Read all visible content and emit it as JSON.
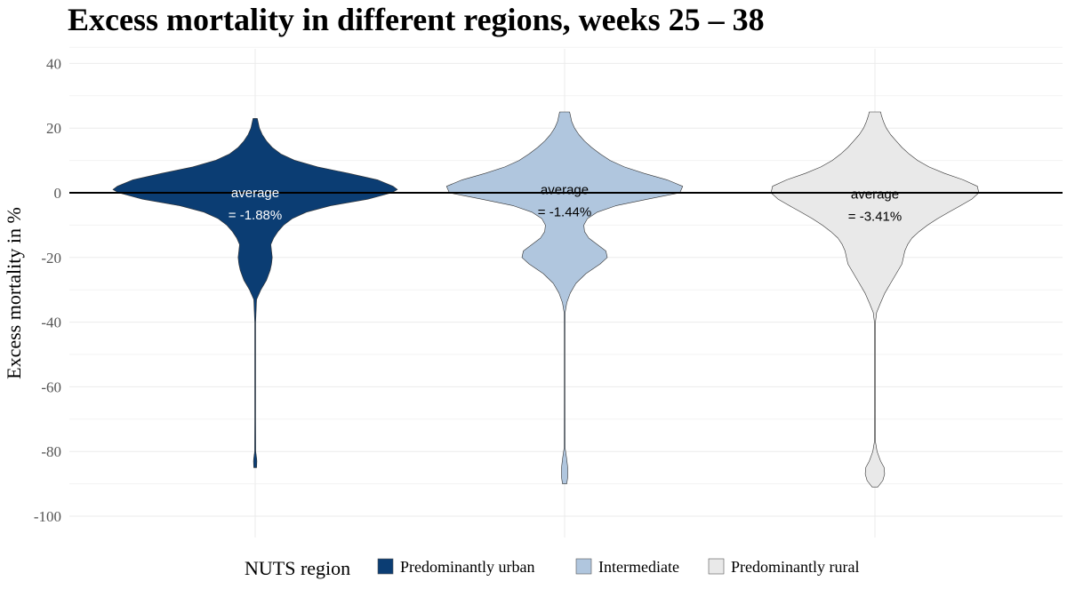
{
  "chart_data": {
    "type": "violin",
    "title": "Excess mortality in different regions, weeks 25 – 38",
    "xlabel": "",
    "ylabel": "Excess mortality in %",
    "ylim": [
      -105,
      43
    ],
    "yticks": [
      40,
      20,
      0,
      -20,
      -40,
      -60,
      -80,
      -100
    ],
    "ytick_labels": [
      "40",
      "20",
      "0",
      "-20",
      "-40",
      "-60",
      "-80",
      "-100"
    ],
    "grid": true,
    "reference_line": 0,
    "legend": {
      "title": "NUTS region",
      "placement": "bottom"
    },
    "series": [
      {
        "name": "Predominantly urban",
        "color": "#0b3d73",
        "text_color": "#ffffff",
        "annotation": [
          "average",
          "= -1.88%"
        ],
        "annotation_y": -3,
        "profile": [
          [
            -85,
            0.01
          ],
          [
            -83,
            0.012
          ],
          [
            -82,
            0.01
          ],
          [
            -80,
            0.004
          ],
          [
            -70,
            0.003
          ],
          [
            -50,
            0.003
          ],
          [
            -40,
            0.003
          ],
          [
            -33,
            0.01
          ],
          [
            -30,
            0.04
          ],
          [
            -27,
            0.08
          ],
          [
            -24,
            0.105
          ],
          [
            -22,
            0.115
          ],
          [
            -20,
            0.12
          ],
          [
            -18,
            0.115
          ],
          [
            -16,
            0.11
          ],
          [
            -14,
            0.13
          ],
          [
            -12,
            0.16
          ],
          [
            -10,
            0.2
          ],
          [
            -8,
            0.26
          ],
          [
            -6,
            0.36
          ],
          [
            -4,
            0.53
          ],
          [
            -2,
            0.79
          ],
          [
            0,
            0.96
          ],
          [
            1,
            1.0
          ],
          [
            2,
            0.97
          ],
          [
            4,
            0.86
          ],
          [
            6,
            0.66
          ],
          [
            8,
            0.44
          ],
          [
            10,
            0.28
          ],
          [
            12,
            0.18
          ],
          [
            14,
            0.12
          ],
          [
            16,
            0.08
          ],
          [
            18,
            0.05
          ],
          [
            20,
            0.03
          ],
          [
            22,
            0.02
          ],
          [
            23,
            0.015
          ]
        ]
      },
      {
        "name": "Intermediate",
        "color": "#b0c6de",
        "text_color": "#000000",
        "annotation": [
          "average",
          "= -1.44%"
        ],
        "annotation_y": -2,
        "profile": [
          [
            -90,
            0.015
          ],
          [
            -88,
            0.022
          ],
          [
            -85,
            0.022
          ],
          [
            -82,
            0.014
          ],
          [
            -79,
            0.004
          ],
          [
            -60,
            0.003
          ],
          [
            -45,
            0.003
          ],
          [
            -37,
            0.004
          ],
          [
            -34,
            0.015
          ],
          [
            -31,
            0.04
          ],
          [
            -28,
            0.08
          ],
          [
            -25,
            0.15
          ],
          [
            -22,
            0.25
          ],
          [
            -20,
            0.3
          ],
          [
            -18,
            0.29
          ],
          [
            -16,
            0.23
          ],
          [
            -14,
            0.17
          ],
          [
            -12,
            0.14
          ],
          [
            -10,
            0.135
          ],
          [
            -8,
            0.16
          ],
          [
            -6,
            0.23
          ],
          [
            -4,
            0.36
          ],
          [
            -2,
            0.58
          ],
          [
            0,
            0.81
          ],
          [
            2,
            0.83
          ],
          [
            4,
            0.72
          ],
          [
            6,
            0.56
          ],
          [
            8,
            0.42
          ],
          [
            10,
            0.32
          ],
          [
            12,
            0.25
          ],
          [
            14,
            0.19
          ],
          [
            16,
            0.14
          ],
          [
            18,
            0.1
          ],
          [
            20,
            0.07
          ],
          [
            22,
            0.05
          ],
          [
            24,
            0.04
          ],
          [
            25,
            0.035
          ]
        ]
      },
      {
        "name": "Predominantly rural",
        "color": "#e9e9e9",
        "text_color": "#000000",
        "annotation": [
          "average",
          "= -3.41%"
        ],
        "annotation_y": -3.5,
        "profile": [
          [
            -91,
            0.02
          ],
          [
            -89,
            0.055
          ],
          [
            -87,
            0.068
          ],
          [
            -85,
            0.065
          ],
          [
            -83,
            0.04
          ],
          [
            -80,
            0.015
          ],
          [
            -77,
            0.004
          ],
          [
            -60,
            0.003
          ],
          [
            -45,
            0.003
          ],
          [
            -40,
            0.004
          ],
          [
            -37,
            0.012
          ],
          [
            -34,
            0.04
          ],
          [
            -31,
            0.07
          ],
          [
            -28,
            0.11
          ],
          [
            -25,
            0.15
          ],
          [
            -22,
            0.19
          ],
          [
            -20,
            0.2
          ],
          [
            -18,
            0.21
          ],
          [
            -16,
            0.23
          ],
          [
            -14,
            0.26
          ],
          [
            -12,
            0.31
          ],
          [
            -10,
            0.37
          ],
          [
            -8,
            0.44
          ],
          [
            -6,
            0.52
          ],
          [
            -4,
            0.6
          ],
          [
            -2,
            0.68
          ],
          [
            0,
            0.73
          ],
          [
            2,
            0.72
          ],
          [
            4,
            0.62
          ],
          [
            6,
            0.49
          ],
          [
            8,
            0.38
          ],
          [
            10,
            0.3
          ],
          [
            12,
            0.24
          ],
          [
            14,
            0.19
          ],
          [
            16,
            0.15
          ],
          [
            18,
            0.11
          ],
          [
            20,
            0.08
          ],
          [
            22,
            0.06
          ],
          [
            24,
            0.045
          ],
          [
            25,
            0.04
          ]
        ]
      }
    ]
  }
}
